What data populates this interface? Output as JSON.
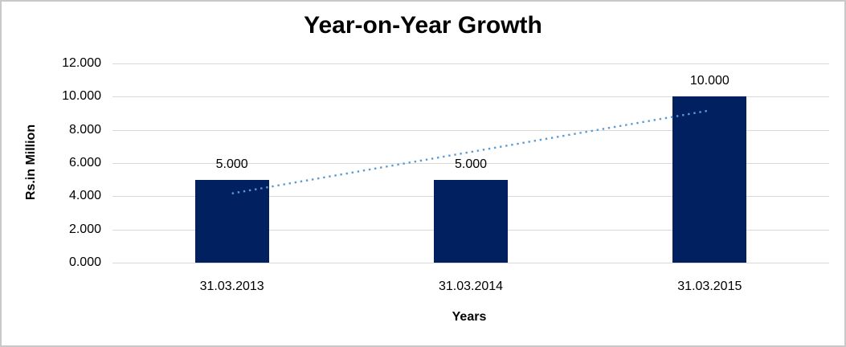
{
  "chart_data": {
    "type": "bar",
    "title": "Year-on-Year Growth",
    "xlabel": "Years",
    "ylabel": "Rs.in Million",
    "categories": [
      "31.03.2013",
      "31.03.2014",
      "31.03.2015"
    ],
    "values": [
      5,
      5,
      10
    ],
    "data_labels": [
      "5.000",
      "5.000",
      "10.000"
    ],
    "y_axis": {
      "min": 0,
      "max": 12,
      "tick_step": 2,
      "ticks": [
        {
          "value": 0,
          "label": "0.000"
        },
        {
          "value": 2,
          "label": "2.000"
        },
        {
          "value": 4,
          "label": "4.000"
        },
        {
          "value": 6,
          "label": "6.000"
        },
        {
          "value": 8,
          "label": "8.000"
        },
        {
          "value": 10,
          "label": "10.000"
        },
        {
          "value": 12,
          "label": "12.000"
        }
      ]
    },
    "grid": true,
    "legend": "none",
    "trendline": {
      "type": "linear",
      "style": "dotted",
      "start_value": 4.17,
      "end_value": 9.17
    },
    "colors": {
      "bar": "#002060",
      "trendline": "#5B9BD5",
      "gridline": "#D9D9D9",
      "text": "#000000",
      "frame_border": "#C9C9C9",
      "background": "#FFFFFF"
    }
  }
}
